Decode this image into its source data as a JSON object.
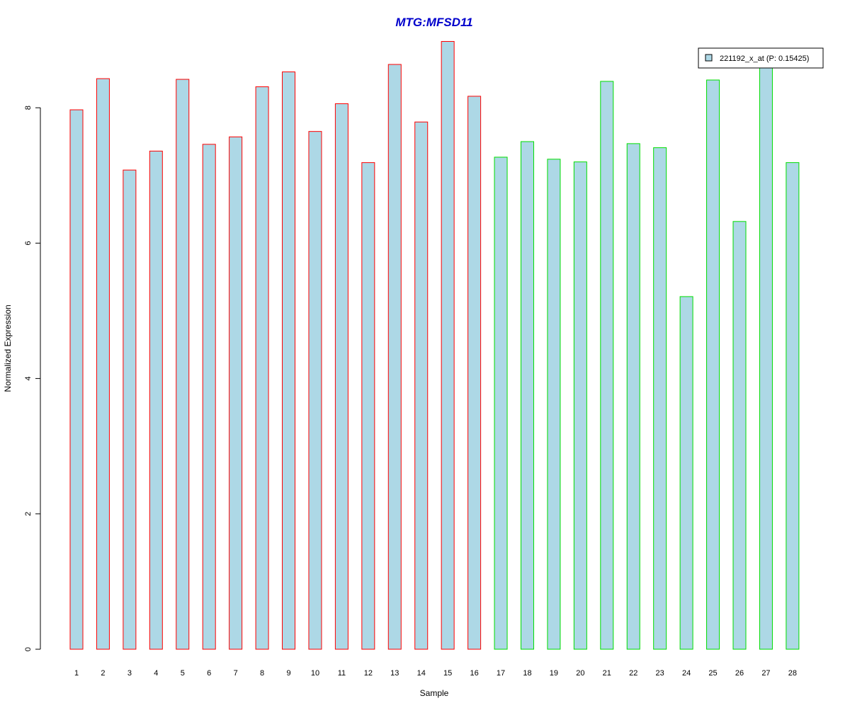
{
  "chart_data": {
    "type": "bar",
    "title": "MTG:MFSD11",
    "xlabel": "Sample",
    "ylabel": "Normalized Expression",
    "categories": [
      "1",
      "2",
      "3",
      "4",
      "5",
      "6",
      "7",
      "8",
      "9",
      "10",
      "11",
      "12",
      "13",
      "14",
      "15",
      "16",
      "17",
      "18",
      "19",
      "20",
      "21",
      "22",
      "23",
      "24",
      "25",
      "26",
      "27",
      "28"
    ],
    "series": [
      {
        "name": "221192_x_at (P: 0.15425)",
        "values": [
          7.97,
          8.43,
          7.08,
          7.36,
          8.42,
          7.46,
          7.57,
          8.31,
          8.53,
          7.65,
          8.06,
          7.19,
          8.64,
          7.79,
          8.98,
          8.17,
          7.27,
          7.5,
          7.24,
          7.2,
          8.39,
          7.47,
          7.41,
          5.21,
          8.41,
          6.32,
          8.6,
          7.19
        ]
      }
    ],
    "group_colors": [
      "#ff0000",
      "#ff0000",
      "#ff0000",
      "#ff0000",
      "#ff0000",
      "#ff0000",
      "#ff0000",
      "#ff0000",
      "#ff0000",
      "#ff0000",
      "#ff0000",
      "#ff0000",
      "#ff0000",
      "#ff0000",
      "#ff0000",
      "#ff0000",
      "#00dd00",
      "#00dd00",
      "#00dd00",
      "#00dd00",
      "#00dd00",
      "#00dd00",
      "#00dd00",
      "#00dd00",
      "#00dd00",
      "#00dd00",
      "#00dd00",
      "#00dd00"
    ],
    "bar_fill": "#add8e6",
    "title_color": "#0000cc",
    "yticks": [
      0,
      2,
      4,
      6,
      8
    ],
    "ylim": [
      0,
      9.6
    ],
    "grid": false,
    "legend_position": "top-right"
  }
}
